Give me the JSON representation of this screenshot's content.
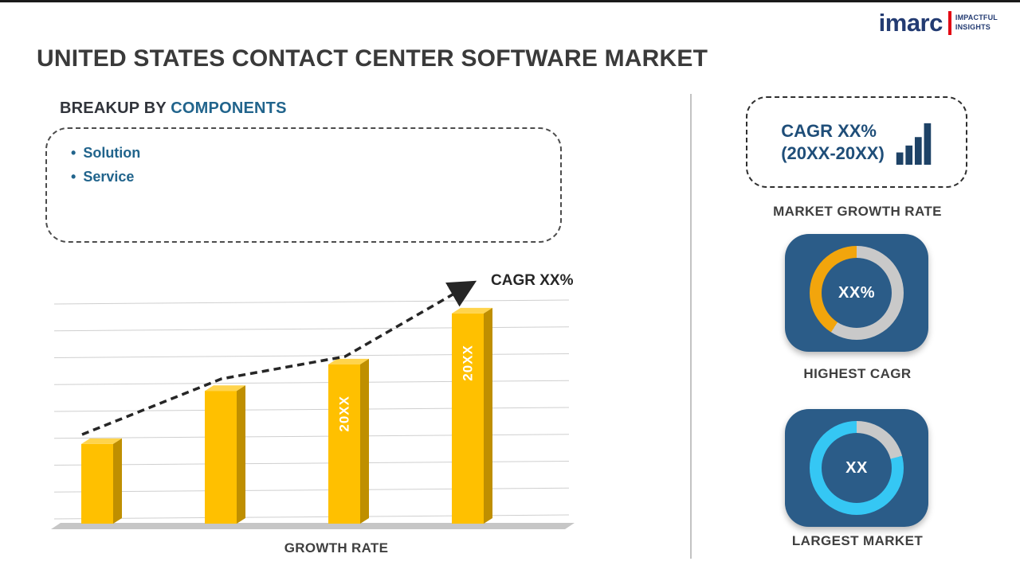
{
  "page": {
    "title": "UNITED STATES CONTACT CENTER SOFTWARE MARKET"
  },
  "logo": {
    "brand": "imarc",
    "tagline_line1": "IMPACTFUL",
    "tagline_line2": "INSIGHTS"
  },
  "breakup": {
    "heading_prefix": "BREAKUP BY",
    "heading_highlight": "COMPONENTS",
    "items": [
      "Solution",
      "Service"
    ]
  },
  "chart_data": {
    "type": "bar",
    "title": "",
    "categories": [
      "",
      "",
      "20XX",
      "20XX"
    ],
    "values": [
      36,
      60,
      72,
      95
    ],
    "bar_labels": [
      "",
      "",
      "20XX",
      "20XX"
    ],
    "ylim": [
      0,
      100
    ],
    "grid": true,
    "legend": false,
    "xlabel": "GROWTH RATE",
    "ylabel": "",
    "bar_colors": {
      "front": "#FFC000",
      "side": "#BF8F00",
      "top": "#FFD44D"
    },
    "trend": {
      "label": "CAGR XX%",
      "color": "#262626",
      "style": "dashed-arrow"
    }
  },
  "sidebar": {
    "growth_card": {
      "line1": "CAGR XX%",
      "line2": "(20XX-20XX)",
      "icon": "ascending-bars-icon"
    },
    "growth_card_label": "MARKET GROWTH RATE",
    "highest_cagr": {
      "value": "XX%",
      "label": "HIGHEST CAGR",
      "ring": {
        "segments": [
          {
            "color": "#C9C9C9",
            "to": 213
          },
          {
            "color": "#F2A50C",
            "to": 360
          }
        ]
      }
    },
    "largest_market": {
      "value": "XX",
      "label": "LARGEST MARKET",
      "ring": {
        "segments": [
          {
            "color": "#C9C9C9",
            "to": 75
          },
          {
            "color": "#35C7F4",
            "to": 360
          }
        ]
      }
    }
  },
  "colors": {
    "accent_blue": "#21648C",
    "navy": "#1E4266",
    "card_text": "#1F4E79",
    "card_blue": "#2B5C88",
    "logo_navy": "#233B72",
    "logo_red": "#E30613"
  }
}
